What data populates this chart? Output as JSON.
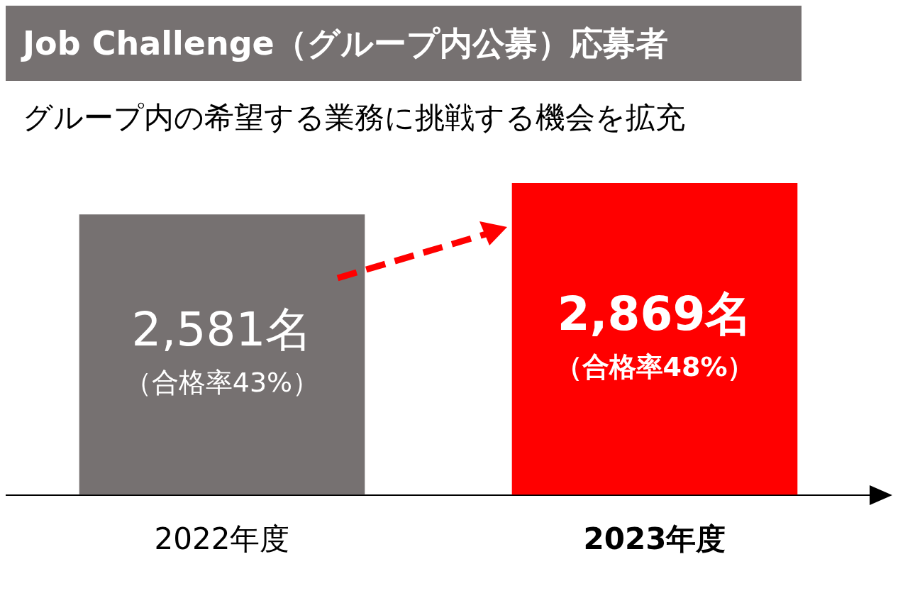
{
  "chart_data": {
    "type": "bar",
    "title": "Job Challenge（グループ内公募）応募者",
    "subtitle": "グループ内の希望する業務に挑戦する機会を拡充",
    "categories": [
      "2022年度",
      "2023年度"
    ],
    "values": [
      2581,
      2869
    ],
    "colors": [
      "#767171",
      "#ff0000"
    ],
    "value_labels": [
      "2,581名",
      "2,869名"
    ],
    "annotations": [
      "（合格率43%）",
      "（合格率48%）"
    ],
    "tick_labels": "x",
    "grid": false,
    "legend": false
  }
}
